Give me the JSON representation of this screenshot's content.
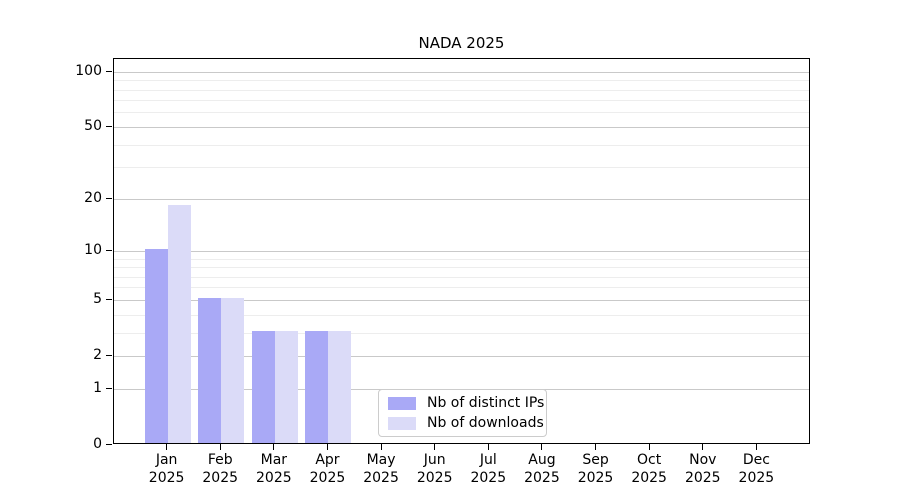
{
  "title": "NADA 2025",
  "colors": {
    "series_distinct_ips": "#a9a9f6",
    "series_downloads": "#dbdbf8",
    "grid_major": "#c9c9c9",
    "grid_minor": "#ededed",
    "axis": "#000000",
    "legend_border": "#cccccc",
    "background": "#ffffff"
  },
  "chart_data": {
    "type": "bar",
    "title": "NADA 2025",
    "categories": [
      "Jan",
      "Feb",
      "Mar",
      "Apr",
      "May",
      "Jun",
      "Jul",
      "Aug",
      "Sep",
      "Oct",
      "Nov",
      "Dec"
    ],
    "category_year": "2025",
    "series": [
      {
        "name": "Nb of distinct IPs",
        "color": "#a9a9f6",
        "values": [
          10,
          5,
          3,
          3,
          0,
          0,
          0,
          0,
          0,
          0,
          0,
          0
        ]
      },
      {
        "name": "Nb of downloads",
        "color": "#dbdbf8",
        "values": [
          18,
          5,
          3,
          3,
          0,
          0,
          0,
          0,
          0,
          0,
          0,
          0
        ]
      }
    ],
    "xlabel": "",
    "ylabel": "",
    "yscale": "log1p",
    "ylim": [
      0,
      118
    ],
    "yticks_major": [
      0,
      1,
      2,
      5,
      10,
      20,
      50,
      100
    ],
    "yticks_minor": [
      3,
      4,
      6,
      7,
      8,
      9,
      30,
      40,
      60,
      70,
      80,
      90
    ],
    "grid": "on",
    "legend_position": "lower center"
  },
  "legend": {
    "items": [
      {
        "label": "Nb of distinct IPs",
        "swatch": "distinct-ips-swatch"
      },
      {
        "label": "Nb of downloads",
        "swatch": "downloads-swatch"
      }
    ]
  }
}
